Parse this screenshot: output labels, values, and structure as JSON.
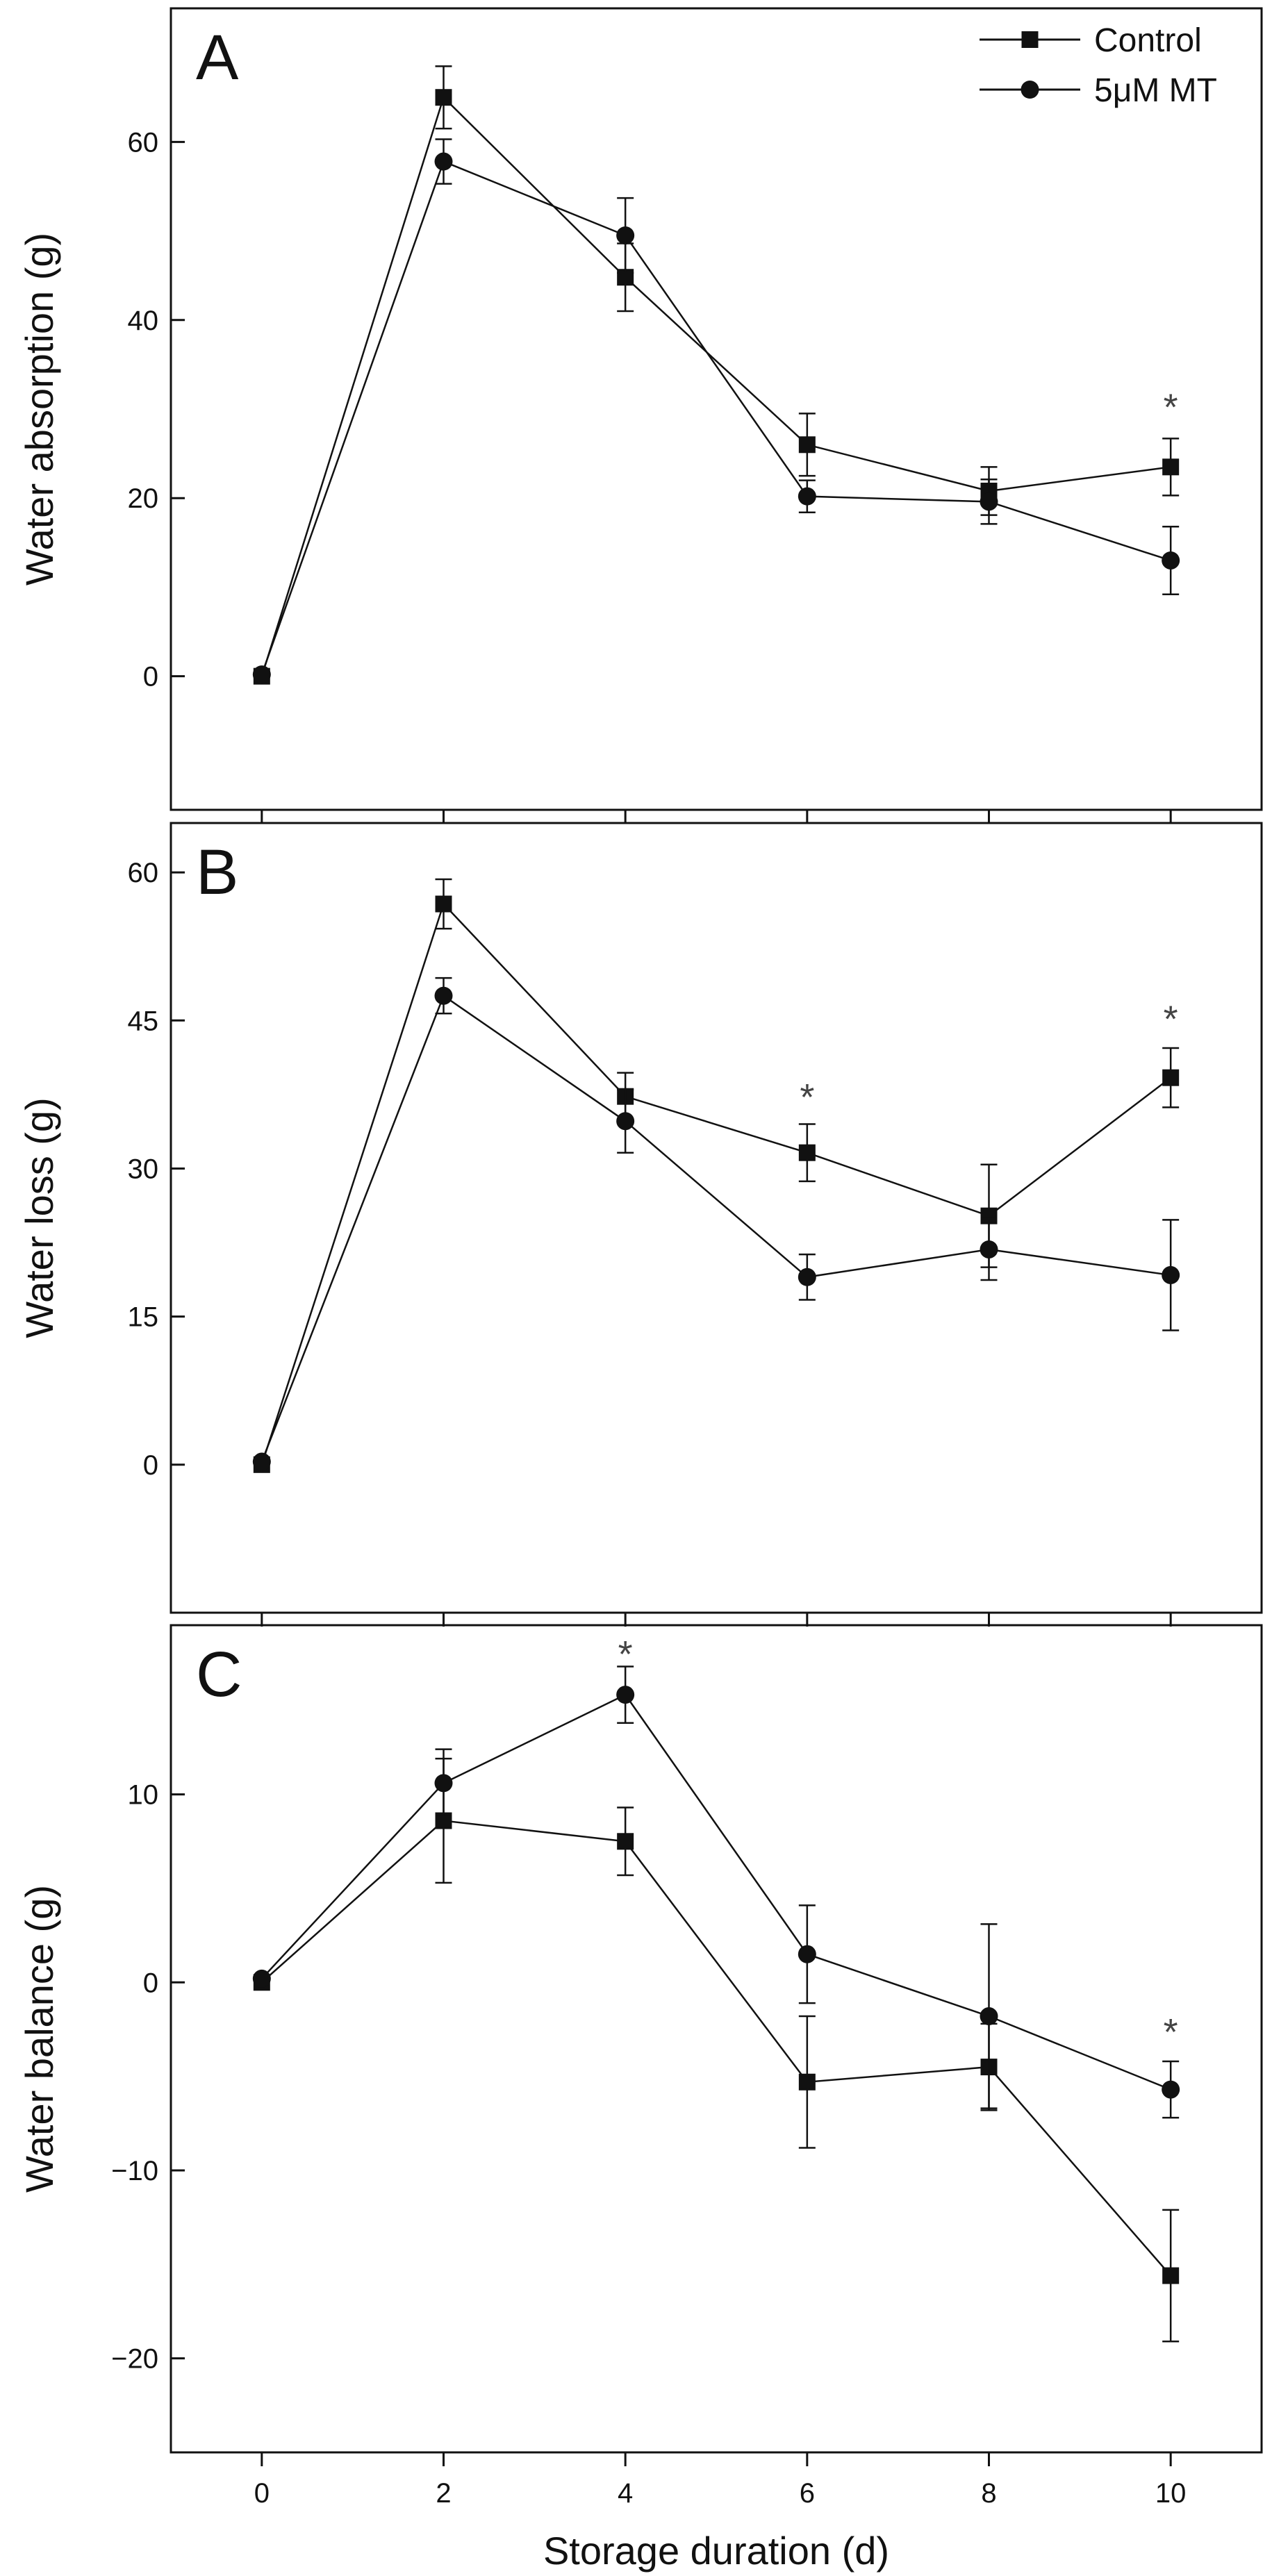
{
  "chart_data": {
    "type": "line",
    "xlabel": "Storage duration (d)",
    "x": [
      0,
      2,
      4,
      6,
      8,
      10
    ],
    "xlim": [
      -1,
      11
    ],
    "xticks": [
      0,
      2,
      4,
      6,
      8,
      10
    ],
    "legend": {
      "placement": "top-right",
      "entries": [
        {
          "name": "Control",
          "marker": "square"
        },
        {
          "name": "5μM MT",
          "marker": "circle"
        }
      ]
    },
    "grid": false,
    "panels": [
      {
        "label": "A",
        "ylabel": "Water absorption (g)",
        "ylim": [
          -15,
          75
        ],
        "yticks": [
          0,
          20,
          40,
          60
        ],
        "series": [
          {
            "name": "Control",
            "marker": "square",
            "values": [
              0,
              65,
              44.8,
              26,
              20.8,
              23.5
            ],
            "errors": [
              0,
              3.5,
              3.8,
              3.5,
              2.7,
              3.2
            ]
          },
          {
            "name": "5μM MT",
            "marker": "circle",
            "values": [
              0.2,
              57.8,
              49.5,
              20.2,
              19.6,
              13
            ],
            "errors": [
              0,
              2.5,
              4.2,
              1.8,
              2.5,
              3.8
            ]
          }
        ],
        "annotations": [
          {
            "x": 10,
            "y": 30.5,
            "text": "*"
          }
        ]
      },
      {
        "label": "B",
        "ylabel": "Water loss (g)",
        "ylim": [
          -15,
          65
        ],
        "yticks": [
          0,
          15,
          30,
          45,
          60
        ],
        "series": [
          {
            "name": "Control",
            "marker": "square",
            "values": [
              0,
              56.8,
              37.3,
              31.6,
              25.2,
              39.2
            ],
            "errors": [
              0,
              2.5,
              2.4,
              2.9,
              5.2,
              3
            ]
          },
          {
            "name": "5μM MT",
            "marker": "circle",
            "values": [
              0.3,
              47.5,
              34.8,
              19,
              21.8,
              19.2
            ],
            "errors": [
              0,
              1.8,
              3.2,
              2.3,
              3.1,
              5.6
            ]
          }
        ],
        "annotations": [
          {
            "x": 6,
            "y": 37.5,
            "text": "*"
          },
          {
            "x": 10,
            "y": 45.4,
            "text": "*"
          }
        ]
      },
      {
        "label": "C",
        "ylabel": "Water balance (g)",
        "ylim": [
          -25,
          19
        ],
        "yticks": [
          -20,
          -10,
          0,
          10
        ],
        "series": [
          {
            "name": "Control",
            "marker": "square",
            "values": [
              0,
              8.6,
              7.5,
              -5.3,
              -4.5,
              -15.6
            ],
            "errors": [
              0,
              3.3,
              1.8,
              3.5,
              2.3,
              3.5
            ]
          },
          {
            "name": "5μM MT",
            "marker": "circle",
            "values": [
              0.2,
              10.6,
              15.3,
              1.5,
              -1.8,
              -5.7
            ],
            "errors": [
              0,
              1.8,
              1.5,
              2.6,
              4.9,
              1.5
            ]
          }
        ],
        "annotations": [
          {
            "x": 4,
            "y": 17.6,
            "text": "*"
          },
          {
            "x": 10,
            "y": -2.5,
            "text": "*"
          }
        ]
      }
    ]
  }
}
